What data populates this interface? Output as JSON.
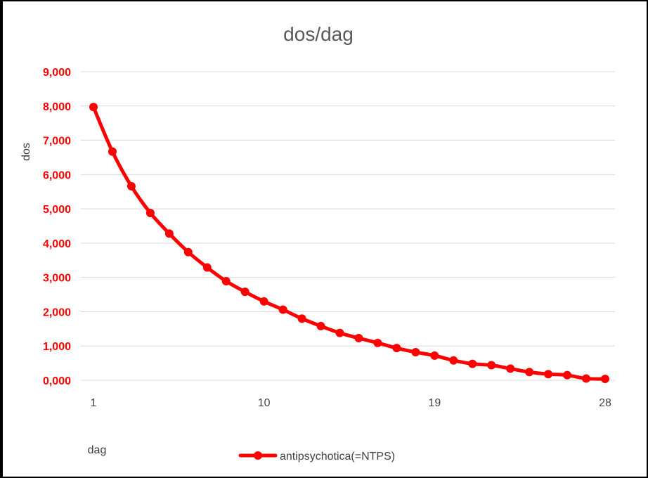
{
  "chart_data": {
    "type": "line",
    "title": "dos/dag",
    "xlabel": "dag",
    "ylabel": "dos",
    "x": [
      1,
      2,
      3,
      4,
      5,
      6,
      7,
      8,
      9,
      10,
      11,
      12,
      13,
      14,
      15,
      16,
      17,
      18,
      19,
      20,
      21,
      22,
      23,
      24,
      25,
      26,
      27,
      28
    ],
    "x_tick_labels": [
      "1",
      "10",
      "19",
      "28"
    ],
    "x_tick_values": [
      1,
      10,
      19,
      28
    ],
    "y_tick_labels": [
      "0,000",
      "1,000",
      "2,000",
      "3,000",
      "4,000",
      "5,000",
      "6,000",
      "7,000",
      "8,000",
      "9,000"
    ],
    "ylim": [
      0,
      9
    ],
    "grid": true,
    "legend_position": "bottom",
    "series": [
      {
        "name": "antipsychotica(=NTPS)",
        "color": "#ff0000",
        "values": [
          7.97,
          6.67,
          5.66,
          4.88,
          4.28,
          3.74,
          3.29,
          2.89,
          2.58,
          2.3,
          2.06,
          1.8,
          1.58,
          1.38,
          1.23,
          1.09,
          0.94,
          0.82,
          0.72,
          0.58,
          0.48,
          0.44,
          0.34,
          0.24,
          0.18,
          0.15,
          0.05,
          0.04
        ]
      }
    ],
    "tick_color": "#ff0000",
    "grid_color": "#d9d9d9"
  }
}
